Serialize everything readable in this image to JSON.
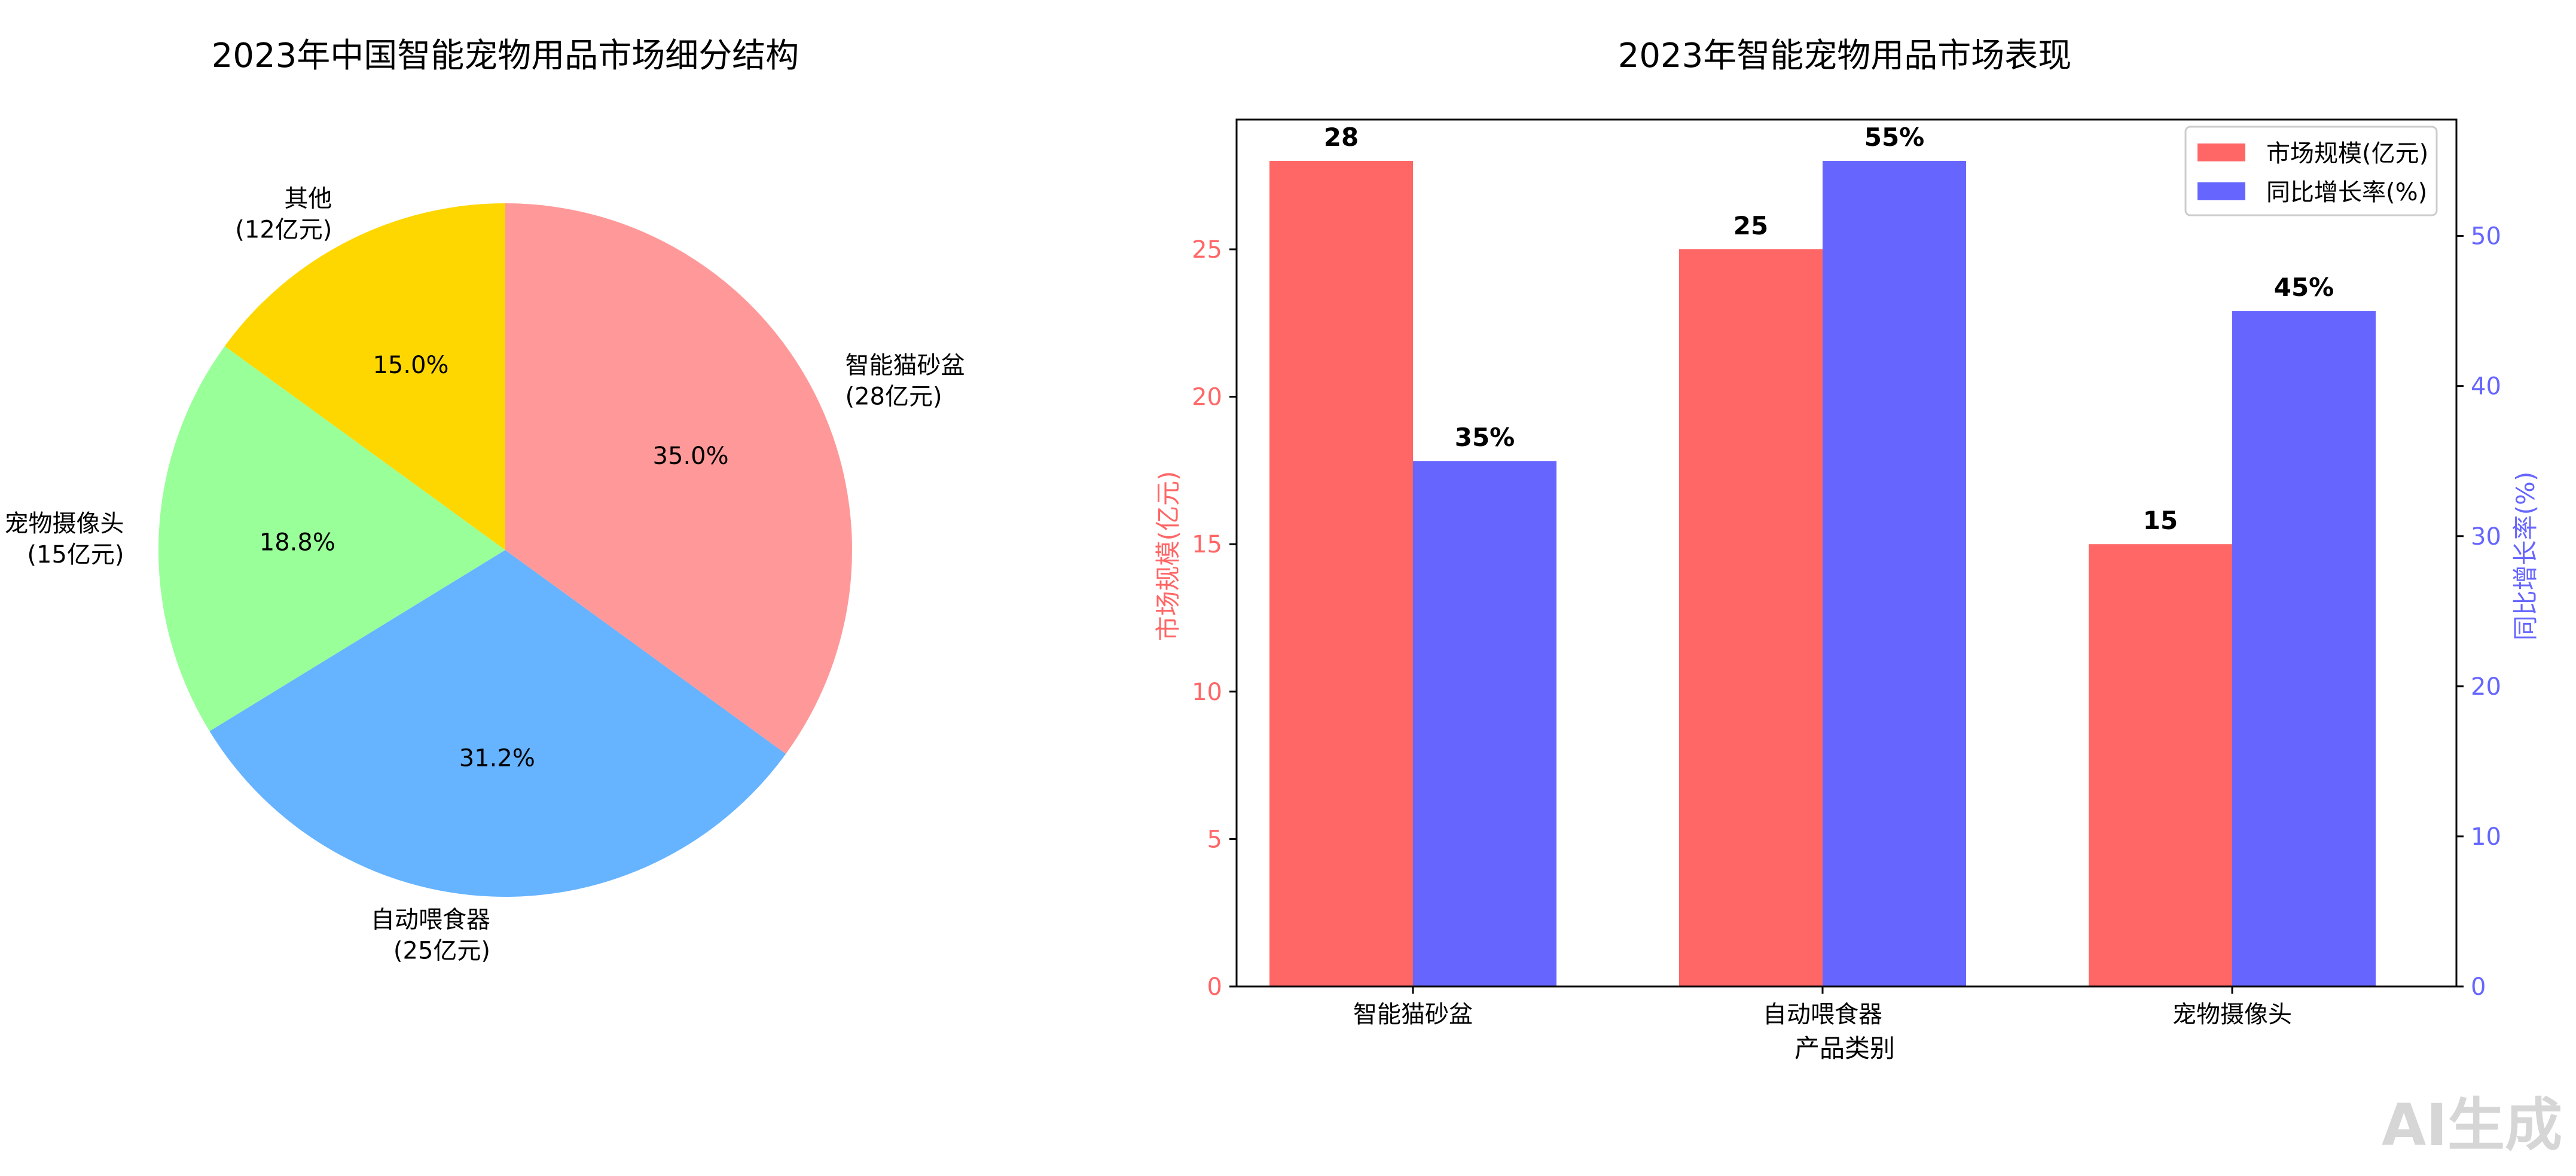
{
  "watermark": "AI生成",
  "chart_data": [
    {
      "type": "pie",
      "title": "2023年中国智能宠物用品市场细分结构",
      "unit": "亿元",
      "slices": [
        {
          "name": "其他",
          "value": 12,
          "label": "其他",
          "value_label": "(12亿元)",
          "pct": "15.0%",
          "color": "#ffd700"
        },
        {
          "name": "宠物摄像头",
          "value": 15,
          "label": "宠物摄像头",
          "value_label": "(15亿元)",
          "pct": "18.8%",
          "color": "#99ff99"
        },
        {
          "name": "自动喂食器",
          "value": 25,
          "label": "自动喂食器",
          "value_label": "(25亿元)",
          "pct": "31.2%",
          "color": "#66b3ff"
        },
        {
          "name": "智能猫砂盆",
          "value": 28,
          "label": "智能猫砂盆",
          "value_label": "(28亿元)",
          "pct": "35.0%",
          "color": "#ff9999"
        }
      ]
    },
    {
      "type": "bar",
      "title": "2023年智能宠物用品市场表现",
      "xlabel": "产品类别",
      "categories": [
        "智能猫砂盆",
        "自动喂食器",
        "宠物摄像头"
      ],
      "series": [
        {
          "name": "市场规模(亿元)",
          "axis": "left",
          "values": [
            28,
            25,
            15
          ],
          "labels": [
            "28",
            "25",
            "15"
          ],
          "color": "#ff6666"
        },
        {
          "name": "同比增长率(%)",
          "axis": "right",
          "values": [
            35,
            55,
            45
          ],
          "labels": [
            "35%",
            "55%",
            "45%"
          ],
          "color": "#6666ff"
        }
      ],
      "y_left": {
        "label": "市场规模(亿元)",
        "ylim": [
          0,
          29.4
        ],
        "ticks": [
          0,
          5,
          10,
          15,
          20,
          25
        ],
        "color": "#ff6666"
      },
      "y_right": {
        "label": "同比增长率(%)",
        "ylim": [
          0,
          57.75
        ],
        "ticks": [
          0,
          10,
          20,
          30,
          40,
          50
        ],
        "color": "#6666ff"
      },
      "legend": "top-right"
    }
  ]
}
